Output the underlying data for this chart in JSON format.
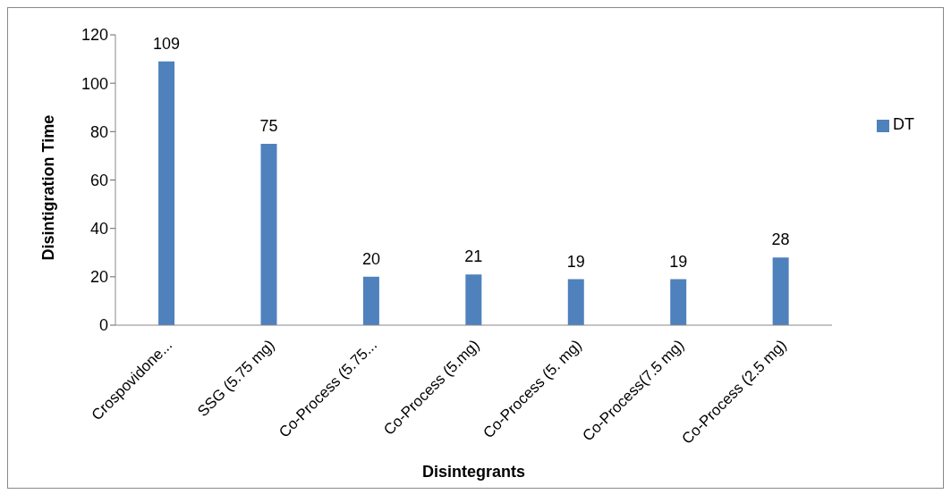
{
  "chart_data": {
    "type": "bar",
    "xlabel": "Disintegrants",
    "ylabel": "Disintigration Time",
    "categories": [
      "Crospovidone...",
      "SSG (5.75 mg)",
      "Co-Process (5.75...",
      "Co-Process (5.mg)",
      "Co-Process (5. mg)",
      "Co-Process(7.5 mg)",
      "Co-Process (2.5 mg)"
    ],
    "series": [
      {
        "name": "DT",
        "color": "#4f81bd",
        "values": [
          109,
          75,
          20,
          21,
          19,
          19,
          28
        ]
      }
    ],
    "ylim": [
      0,
      120
    ],
    "yticks": [
      0,
      20,
      40,
      60,
      80,
      100,
      120
    ],
    "grid": false,
    "legend": "right",
    "data_labels": true
  }
}
